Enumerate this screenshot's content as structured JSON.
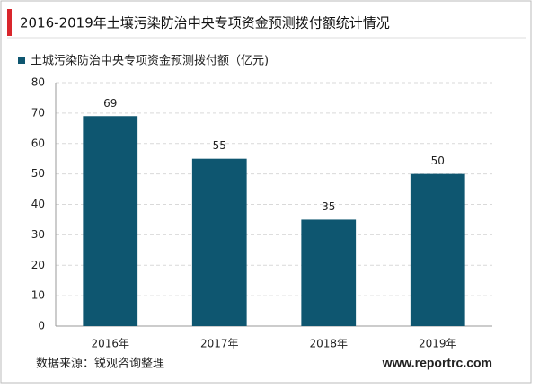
{
  "chart_data": {
    "type": "bar",
    "title": "2016-2019年土壤污染防治中央专项资金预测拨付额统计情况",
    "series_name": "土城污染防治中央专项资金预测拨付额（亿元)",
    "categories": [
      "2016年",
      "2017年",
      "2018年",
      "2019年"
    ],
    "values": [
      69,
      55,
      35,
      50
    ],
    "color": "#0e5670",
    "ylim": [
      0,
      80
    ],
    "yticks": [
      0,
      10,
      20,
      30,
      40,
      50,
      60,
      70,
      80
    ],
    "grid": true,
    "source": "数据来源：锐观咨询整理",
    "website": "www.reportrc.com"
  }
}
